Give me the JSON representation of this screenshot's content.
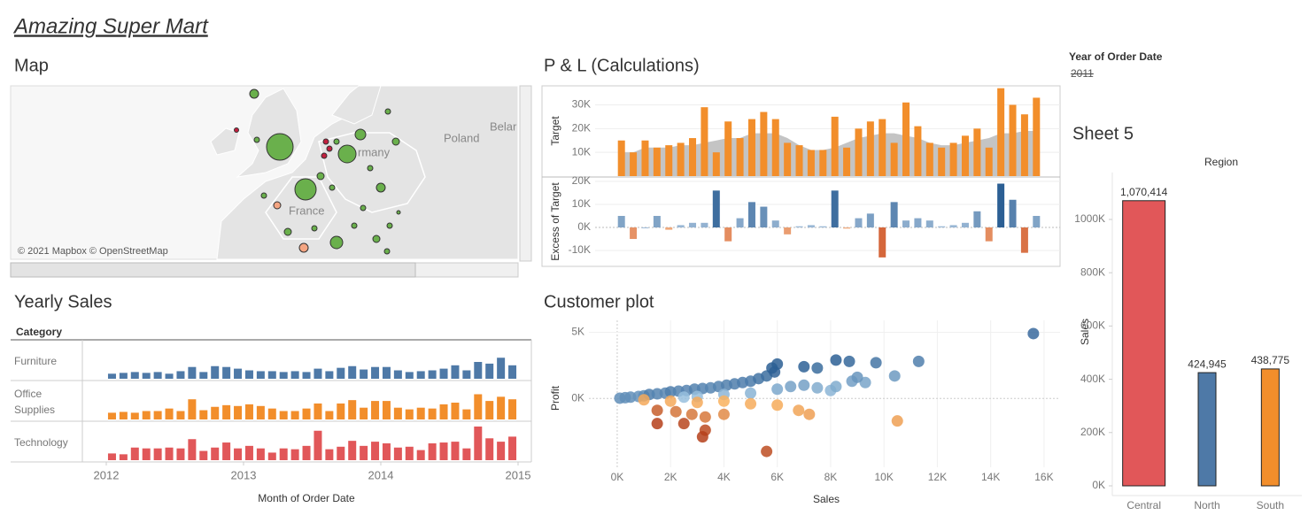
{
  "title": "Amazing Super Mart",
  "filter": {
    "label": "Year of Order Date",
    "value": "2011"
  },
  "map": {
    "title": "Map",
    "places": [
      "Poland",
      "Belar",
      "rmany",
      "France"
    ],
    "attribution": "© 2021 Mapbox © OpenStreetMap"
  },
  "chart_data": [
    {
      "type": "bar-area",
      "title": "P & L (Calculations)",
      "y_label": "Target",
      "values": [
        15000,
        10000,
        15000,
        12000,
        13000,
        14000,
        16000,
        29000,
        10000,
        23000,
        16000,
        24000,
        27000,
        24000,
        14000,
        13000,
        11000,
        11000,
        25000,
        12000,
        20000,
        23000,
        24000,
        14000,
        31000,
        21000,
        14000,
        12000,
        14000,
        17000,
        20000,
        12000,
        37000,
        30000,
        26000,
        33000
      ],
      "color": "#f28e2b",
      "area_values": [
        10000,
        10000,
        12000,
        12000,
        12000,
        13000,
        13000,
        14000,
        15000,
        16000,
        16000,
        18000,
        18000,
        18000,
        16000,
        13000,
        11000,
        11000,
        12000,
        14000,
        16000,
        17000,
        18000,
        18000,
        17000,
        16000,
        14000,
        13000,
        13000,
        14000,
        15000,
        16000,
        18000,
        18000,
        19000,
        19000
      ],
      "area_color": "#c4c4c4",
      "ylim": [
        0,
        38000
      ],
      "yticks": [
        {
          "value": 10000,
          "label": "10K"
        },
        {
          "value": 20000,
          "label": "20K"
        },
        {
          "value": 30000,
          "label": "30K"
        }
      ]
    },
    {
      "type": "diverging-bar",
      "y_label": "Excess of Target",
      "values": [
        5000,
        -5000,
        0,
        5000,
        -1000,
        1000,
        2000,
        2000,
        16000,
        -6000,
        4000,
        11000,
        9000,
        3000,
        -3000,
        500,
        1000,
        500,
        16000,
        -500,
        4000,
        6000,
        -13000,
        11000,
        3000,
        4000,
        3000,
        500,
        1000,
        2000,
        7000,
        -6000,
        19000,
        12000,
        -11000,
        5000
      ],
      "positive_color": "#2c5f94",
      "negative_color": "#c9461b",
      "ylim": [
        -16500,
        21500
      ],
      "yticks": [
        {
          "value": -10000,
          "label": "-10K"
        },
        {
          "value": 0,
          "label": "0K"
        },
        {
          "value": 10000,
          "label": "10K"
        },
        {
          "value": 20000,
          "label": "20K"
        }
      ]
    },
    {
      "type": "small-multiple-bar",
      "title": "Yearly Sales",
      "row_header": "Category",
      "x_label": "Month of Order Date",
      "xlim": [
        2012,
        2015
      ],
      "xticks": [
        2012,
        2013,
        2014,
        2015
      ],
      "series": [
        {
          "name": "Furniture",
          "color": "#4e79a7",
          "values": [
            6,
            7,
            8,
            7,
            8,
            6,
            9,
            14,
            8,
            15,
            14,
            12,
            10,
            9,
            9,
            8,
            9,
            8,
            12,
            9,
            13,
            15,
            11,
            14,
            14,
            10,
            8,
            9,
            10,
            12,
            16,
            10,
            20,
            18,
            25,
            16
          ]
        },
        {
          "name": "Office Supplies",
          "color": "#f28e2b",
          "values": [
            8,
            9,
            8,
            10,
            10,
            13,
            10,
            24,
            11,
            15,
            17,
            16,
            18,
            16,
            13,
            10,
            10,
            13,
            19,
            10,
            19,
            23,
            14,
            22,
            22,
            14,
            12,
            14,
            13,
            18,
            20,
            12,
            30,
            22,
            27,
            24
          ]
        },
        {
          "name": "Technology",
          "color": "#e15759",
          "values": [
            8,
            7,
            15,
            14,
            14,
            15,
            14,
            25,
            11,
            15,
            21,
            14,
            17,
            14,
            9,
            14,
            13,
            17,
            35,
            13,
            16,
            23,
            17,
            22,
            20,
            15,
            16,
            12,
            20,
            21,
            22,
            14,
            40,
            26,
            22,
            28
          ]
        }
      ]
    },
    {
      "type": "scatter",
      "title": "Customer plot",
      "x_label": "Sales",
      "y_label": "Profit",
      "x": [
        100,
        300,
        500,
        800,
        1000,
        1200,
        1500,
        1800,
        2000,
        2300,
        2600,
        2900,
        3200,
        3500,
        3800,
        4100,
        4400,
        4700,
        5000,
        5300,
        5600,
        5900,
        6000,
        5800,
        7000,
        7500,
        8200,
        8700,
        9700,
        11300,
        15600,
        2500,
        3000,
        4000,
        5000,
        6000,
        6500,
        7000,
        7500,
        8000,
        8200,
        8800,
        9300,
        10400,
        9000,
        1000,
        2000,
        3000,
        4000,
        5000,
        6000,
        6800,
        7200,
        10500,
        1500,
        2200,
        2800,
        3300,
        1500,
        2500,
        3300,
        3200,
        5600,
        4000
      ],
      "y": [
        20,
        60,
        100,
        150,
        200,
        300,
        350,
        400,
        500,
        550,
        600,
        700,
        750,
        800,
        900,
        1000,
        1100,
        1200,
        1300,
        1500,
        1700,
        2000,
        2600,
        2300,
        2400,
        2300,
        2900,
        2800,
        2700,
        2800,
        4900,
        100,
        150,
        300,
        400,
        700,
        900,
        1000,
        800,
        600,
        900,
        1300,
        1200,
        1700,
        1600,
        -100,
        -200,
        -300,
        -200,
        -400,
        -500,
        -900,
        -1200,
        -1700,
        -900,
        -1000,
        -1200,
        -1400,
        -1900,
        -1900,
        -2400,
        -2900,
        -4000,
        -1200
      ],
      "positive_color": "#2c5f94",
      "negative_color": "#b5401a",
      "xlim": [
        -1060,
        16600
      ],
      "ylim": [
        -6000,
        5900
      ],
      "xticks": [
        {
          "value": 0,
          "label": "0K"
        },
        {
          "value": 2000,
          "label": "2K"
        },
        {
          "value": 4000,
          "label": "4K"
        },
        {
          "value": 6000,
          "label": "6K"
        },
        {
          "value": 8000,
          "label": "8K"
        },
        {
          "value": 10000,
          "label": "10K"
        },
        {
          "value": 12000,
          "label": "12K"
        },
        {
          "value": 14000,
          "label": "14K"
        },
        {
          "value": 16000,
          "label": "16K"
        }
      ],
      "yticks": [
        {
          "value": 0,
          "label": "0K"
        },
        {
          "value": 5000,
          "label": "5K"
        }
      ]
    },
    {
      "type": "bar",
      "title": "Sheet 5",
      "header": "Region",
      "y_label": "Sales",
      "categories": [
        "Central",
        "North",
        "South"
      ],
      "values": [
        1070414,
        424945,
        438775
      ],
      "value_labels": [
        "1,070,414",
        "424,945",
        "438,775"
      ],
      "colors": [
        "#e15759",
        "#4e79a7",
        "#f28e2b"
      ],
      "ylim": [
        0,
        1176000
      ],
      "yticks": [
        {
          "value": 0,
          "label": "0K"
        },
        {
          "value": 200000,
          "label": "200K"
        },
        {
          "value": 400000,
          "label": "400K"
        },
        {
          "value": 600000,
          "label": "600K"
        },
        {
          "value": 800000,
          "label": "800K"
        },
        {
          "value": 1000000,
          "label": "1000K"
        }
      ]
    }
  ]
}
